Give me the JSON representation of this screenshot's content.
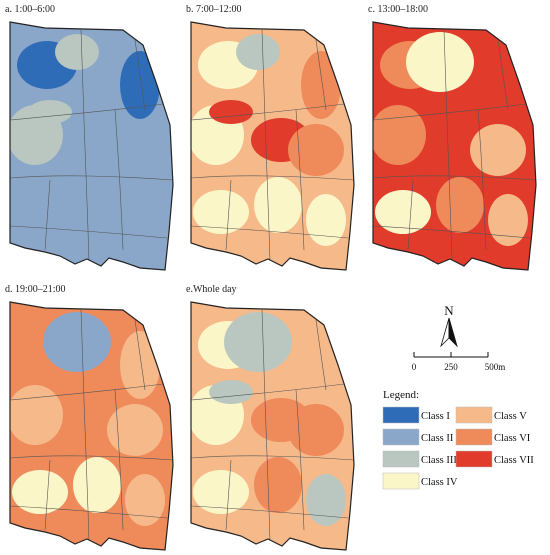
{
  "panels": [
    {
      "title": "a. 1:00–6:00",
      "base": "class_ii",
      "blobs": [
        [
          "class_i",
          "ul"
        ],
        [
          "class_i",
          "ur"
        ],
        [
          "class_iii",
          "cl"
        ],
        [
          "class_iii",
          "tc"
        ],
        [
          "class_iii",
          "ml"
        ]
      ]
    },
    {
      "title": "b. 7:00–12:00",
      "base": "class_v",
      "blobs": [
        [
          "class_iv",
          "ul"
        ],
        [
          "class_iv",
          "cl"
        ],
        [
          "class_iii",
          "tc"
        ],
        [
          "class_iv",
          "lc"
        ],
        [
          "class_vi",
          "ur"
        ],
        [
          "class_vii",
          "cc"
        ],
        [
          "class_vi",
          "mr"
        ],
        [
          "class_iv",
          "ll"
        ],
        [
          "class_vii",
          "ml"
        ],
        [
          "class_iv",
          "lr"
        ]
      ]
    },
    {
      "title": "c. 13:00–18:00",
      "base": "class_vii",
      "blobs": [
        [
          "class_vi",
          "ul"
        ],
        [
          "class_v",
          "tc"
        ],
        [
          "class_iv",
          "tc2"
        ],
        [
          "class_vi",
          "cl"
        ],
        [
          "class_v",
          "mr"
        ],
        [
          "class_iv",
          "ll"
        ],
        [
          "class_vi",
          "lc"
        ],
        [
          "class_v",
          "lr"
        ]
      ]
    },
    {
      "title": "d. 19:00–21:00",
      "base": "class_vi",
      "blobs": [
        [
          "class_i",
          "tc"
        ],
        [
          "class_ii",
          "tc2"
        ],
        [
          "class_v",
          "ur"
        ],
        [
          "class_v",
          "cl"
        ],
        [
          "class_v",
          "mr"
        ],
        [
          "class_iv",
          "ll"
        ],
        [
          "class_v",
          "lr"
        ],
        [
          "class_iv",
          "lc"
        ]
      ]
    },
    {
      "title": "e.Whole day",
      "base": "class_v",
      "blobs": [
        [
          "class_iv",
          "ul"
        ],
        [
          "class_ii",
          "tc"
        ],
        [
          "class_iii",
          "tc2"
        ],
        [
          "class_iv",
          "cl"
        ],
        [
          "class_vi",
          "cc"
        ],
        [
          "class_iii",
          "ml"
        ],
        [
          "class_vi",
          "mr"
        ],
        [
          "class_iv",
          "ll"
        ],
        [
          "class_iii",
          "lr"
        ],
        [
          "class_vi",
          "lc"
        ]
      ]
    }
  ],
  "north_arrow": {
    "label": "N"
  },
  "scale_bar": {
    "labels": [
      "0",
      "250",
      "500m"
    ]
  },
  "legend": {
    "title": "Legend:",
    "items": [
      {
        "key": "class_i",
        "label": "Class I",
        "color": "#2e6cb8"
      },
      {
        "key": "class_ii",
        "label": "Class II",
        "color": "#8aa6c9"
      },
      {
        "key": "class_iii",
        "label": "Class III",
        "color": "#b9c7c0"
      },
      {
        "key": "class_iv",
        "label": "Class IV",
        "color": "#fbf6c8"
      },
      {
        "key": "class_v",
        "label": "Class V",
        "color": "#f6b98a"
      },
      {
        "key": "class_vi",
        "label": "Class VI",
        "color": "#ef8a5a"
      },
      {
        "key": "class_vii",
        "label": "Class VII",
        "color": "#e03b2b"
      }
    ]
  }
}
